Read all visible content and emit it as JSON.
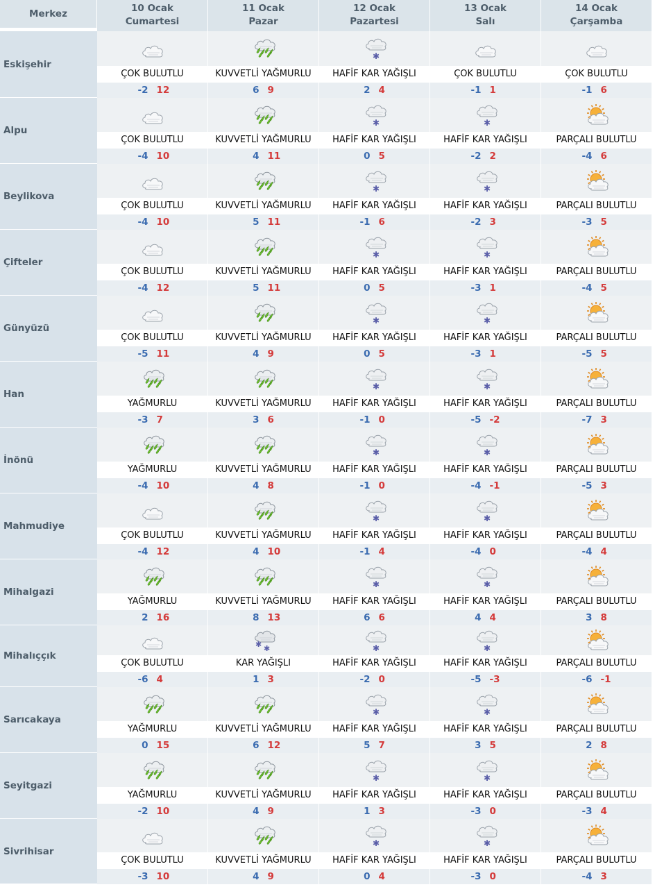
{
  "header": {
    "corner": "Merkez",
    "days": [
      {
        "date": "10 Ocak",
        "weekday": "Cumartesi"
      },
      {
        "date": "11 Ocak",
        "weekday": "Pazar"
      },
      {
        "date": "12 Ocak",
        "weekday": "Pazartesi"
      },
      {
        "date": "13 Ocak",
        "weekday": "Salı"
      },
      {
        "date": "14 Ocak",
        "weekday": "Çarşamba"
      }
    ]
  },
  "icons": {
    "cloudy": "cloudy-icon",
    "heavy-rain": "heavy-rain-icon",
    "rain": "rain-icon",
    "light-snow": "light-snow-icon",
    "snow": "snow-icon",
    "partly-cloudy": "partly-cloudy-icon"
  },
  "colors": {
    "min": "#3a6bb0",
    "max": "#d43a3a"
  },
  "locations": [
    {
      "name": "Eskişehir",
      "days": [
        {
          "icon": "cloudy",
          "desc": "ÇOK BULUTLU",
          "min": "-2",
          "max": "12"
        },
        {
          "icon": "heavy-rain",
          "desc": "KUVVETLİ YAĞMURLU",
          "min": "6",
          "max": "9"
        },
        {
          "icon": "light-snow",
          "desc": "HAFİF KAR YAĞIŞLI",
          "min": "2",
          "max": "4"
        },
        {
          "icon": "cloudy",
          "desc": "ÇOK BULUTLU",
          "min": "-1",
          "max": "1"
        },
        {
          "icon": "cloudy",
          "desc": "ÇOK BULUTLU",
          "min": "-1",
          "max": "6"
        }
      ]
    },
    {
      "name": "Alpu",
      "days": [
        {
          "icon": "cloudy",
          "desc": "ÇOK BULUTLU",
          "min": "-4",
          "max": "10"
        },
        {
          "icon": "heavy-rain",
          "desc": "KUVVETLİ YAĞMURLU",
          "min": "4",
          "max": "11"
        },
        {
          "icon": "light-snow",
          "desc": "HAFİF KAR YAĞIŞLI",
          "min": "0",
          "max": "5"
        },
        {
          "icon": "light-snow",
          "desc": "HAFİF KAR YAĞIŞLI",
          "min": "-2",
          "max": "2"
        },
        {
          "icon": "partly-cloudy",
          "desc": "PARÇALI BULUTLU",
          "min": "-4",
          "max": "6"
        }
      ]
    },
    {
      "name": "Beylikova",
      "days": [
        {
          "icon": "cloudy",
          "desc": "ÇOK BULUTLU",
          "min": "-4",
          "max": "10"
        },
        {
          "icon": "heavy-rain",
          "desc": "KUVVETLİ YAĞMURLU",
          "min": "5",
          "max": "11"
        },
        {
          "icon": "light-snow",
          "desc": "HAFİF KAR YAĞIŞLI",
          "min": "-1",
          "max": "6"
        },
        {
          "icon": "light-snow",
          "desc": "HAFİF KAR YAĞIŞLI",
          "min": "-2",
          "max": "3"
        },
        {
          "icon": "partly-cloudy",
          "desc": "PARÇALI BULUTLU",
          "min": "-3",
          "max": "5"
        }
      ]
    },
    {
      "name": "Çifteler",
      "days": [
        {
          "icon": "cloudy",
          "desc": "ÇOK BULUTLU",
          "min": "-4",
          "max": "12"
        },
        {
          "icon": "heavy-rain",
          "desc": "KUVVETLİ YAĞMURLU",
          "min": "5",
          "max": "11"
        },
        {
          "icon": "light-snow",
          "desc": "HAFİF KAR YAĞIŞLI",
          "min": "0",
          "max": "5"
        },
        {
          "icon": "light-snow",
          "desc": "HAFİF KAR YAĞIŞLI",
          "min": "-3",
          "max": "1"
        },
        {
          "icon": "partly-cloudy",
          "desc": "PARÇALI BULUTLU",
          "min": "-4",
          "max": "5"
        }
      ]
    },
    {
      "name": "Günyüzü",
      "days": [
        {
          "icon": "cloudy",
          "desc": "ÇOK BULUTLU",
          "min": "-5",
          "max": "11"
        },
        {
          "icon": "heavy-rain",
          "desc": "KUVVETLİ YAĞMURLU",
          "min": "4",
          "max": "9"
        },
        {
          "icon": "light-snow",
          "desc": "HAFİF KAR YAĞIŞLI",
          "min": "0",
          "max": "5"
        },
        {
          "icon": "light-snow",
          "desc": "HAFİF KAR YAĞIŞLI",
          "min": "-3",
          "max": "1"
        },
        {
          "icon": "partly-cloudy",
          "desc": "PARÇALI BULUTLU",
          "min": "-5",
          "max": "5"
        }
      ]
    },
    {
      "name": "Han",
      "days": [
        {
          "icon": "rain",
          "desc": "YAĞMURLU",
          "min": "-3",
          "max": "7"
        },
        {
          "icon": "heavy-rain",
          "desc": "KUVVETLİ YAĞMURLU",
          "min": "3",
          "max": "6"
        },
        {
          "icon": "light-snow",
          "desc": "HAFİF KAR YAĞIŞLI",
          "min": "-1",
          "max": "0"
        },
        {
          "icon": "light-snow",
          "desc": "HAFİF KAR YAĞIŞLI",
          "min": "-5",
          "max": "-2"
        },
        {
          "icon": "partly-cloudy",
          "desc": "PARÇALI BULUTLU",
          "min": "-7",
          "max": "3"
        }
      ]
    },
    {
      "name": "İnönü",
      "days": [
        {
          "icon": "rain",
          "desc": "YAĞMURLU",
          "min": "-4",
          "max": "10"
        },
        {
          "icon": "heavy-rain",
          "desc": "KUVVETLİ YAĞMURLU",
          "min": "4",
          "max": "8"
        },
        {
          "icon": "light-snow",
          "desc": "HAFİF KAR YAĞIŞLI",
          "min": "-1",
          "max": "0"
        },
        {
          "icon": "light-snow",
          "desc": "HAFİF KAR YAĞIŞLI",
          "min": "-4",
          "max": "-1"
        },
        {
          "icon": "partly-cloudy",
          "desc": "PARÇALI BULUTLU",
          "min": "-5",
          "max": "3"
        }
      ]
    },
    {
      "name": "Mahmudiye",
      "days": [
        {
          "icon": "cloudy",
          "desc": "ÇOK BULUTLU",
          "min": "-4",
          "max": "12"
        },
        {
          "icon": "heavy-rain",
          "desc": "KUVVETLİ YAĞMURLU",
          "min": "4",
          "max": "10"
        },
        {
          "icon": "light-snow",
          "desc": "HAFİF KAR YAĞIŞLI",
          "min": "-1",
          "max": "4"
        },
        {
          "icon": "light-snow",
          "desc": "HAFİF KAR YAĞIŞLI",
          "min": "-4",
          "max": "0"
        },
        {
          "icon": "partly-cloudy",
          "desc": "PARÇALI BULUTLU",
          "min": "-4",
          "max": "4"
        }
      ]
    },
    {
      "name": "Mihalgazi",
      "days": [
        {
          "icon": "rain",
          "desc": "YAĞMURLU",
          "min": "2",
          "max": "16"
        },
        {
          "icon": "heavy-rain",
          "desc": "KUVVETLİ YAĞMURLU",
          "min": "8",
          "max": "13"
        },
        {
          "icon": "light-snow",
          "desc": "HAFİF KAR YAĞIŞLI",
          "min": "6",
          "max": "6"
        },
        {
          "icon": "light-snow",
          "desc": "HAFİF KAR YAĞIŞLI",
          "min": "4",
          "max": "4"
        },
        {
          "icon": "partly-cloudy",
          "desc": "PARÇALI BULUTLU",
          "min": "3",
          "max": "8"
        }
      ]
    },
    {
      "name": "Mihalıççık",
      "days": [
        {
          "icon": "cloudy",
          "desc": "ÇOK BULUTLU",
          "min": "-6",
          "max": "4"
        },
        {
          "icon": "snow",
          "desc": "KAR YAĞIŞLI",
          "min": "1",
          "max": "3"
        },
        {
          "icon": "light-snow",
          "desc": "HAFİF KAR YAĞIŞLI",
          "min": "-2",
          "max": "0"
        },
        {
          "icon": "light-snow",
          "desc": "HAFİF KAR YAĞIŞLI",
          "min": "-5",
          "max": "-3"
        },
        {
          "icon": "partly-cloudy",
          "desc": "PARÇALI BULUTLU",
          "min": "-6",
          "max": "-1"
        }
      ]
    },
    {
      "name": "Sarıcakaya",
      "days": [
        {
          "icon": "rain",
          "desc": "YAĞMURLU",
          "min": "0",
          "max": "15"
        },
        {
          "icon": "heavy-rain",
          "desc": "KUVVETLİ YAĞMURLU",
          "min": "6",
          "max": "12"
        },
        {
          "icon": "light-snow",
          "desc": "HAFİF KAR YAĞIŞLI",
          "min": "5",
          "max": "7"
        },
        {
          "icon": "light-snow",
          "desc": "HAFİF KAR YAĞIŞLI",
          "min": "3",
          "max": "5"
        },
        {
          "icon": "partly-cloudy",
          "desc": "PARÇALI BULUTLU",
          "min": "2",
          "max": "8"
        }
      ]
    },
    {
      "name": "Seyitgazi",
      "days": [
        {
          "icon": "rain",
          "desc": "YAĞMURLU",
          "min": "-2",
          "max": "10"
        },
        {
          "icon": "heavy-rain",
          "desc": "KUVVETLİ YAĞMURLU",
          "min": "4",
          "max": "9"
        },
        {
          "icon": "light-snow",
          "desc": "HAFİF KAR YAĞIŞLI",
          "min": "1",
          "max": "3"
        },
        {
          "icon": "light-snow",
          "desc": "HAFİF KAR YAĞIŞLI",
          "min": "-3",
          "max": "0"
        },
        {
          "icon": "partly-cloudy",
          "desc": "PARÇALI BULUTLU",
          "min": "-3",
          "max": "4"
        }
      ]
    },
    {
      "name": "Sivrihisar",
      "days": [
        {
          "icon": "cloudy",
          "desc": "ÇOK BULUTLU",
          "min": "-3",
          "max": "10"
        },
        {
          "icon": "heavy-rain",
          "desc": "KUVVETLİ YAĞMURLU",
          "min": "4",
          "max": "9"
        },
        {
          "icon": "light-snow",
          "desc": "HAFİF KAR YAĞIŞLI",
          "min": "0",
          "max": "4"
        },
        {
          "icon": "light-snow",
          "desc": "HAFİF KAR YAĞIŞLI",
          "min": "-3",
          "max": "0"
        },
        {
          "icon": "partly-cloudy",
          "desc": "PARÇALI BULUTLU",
          "min": "-4",
          "max": "3"
        }
      ]
    }
  ]
}
